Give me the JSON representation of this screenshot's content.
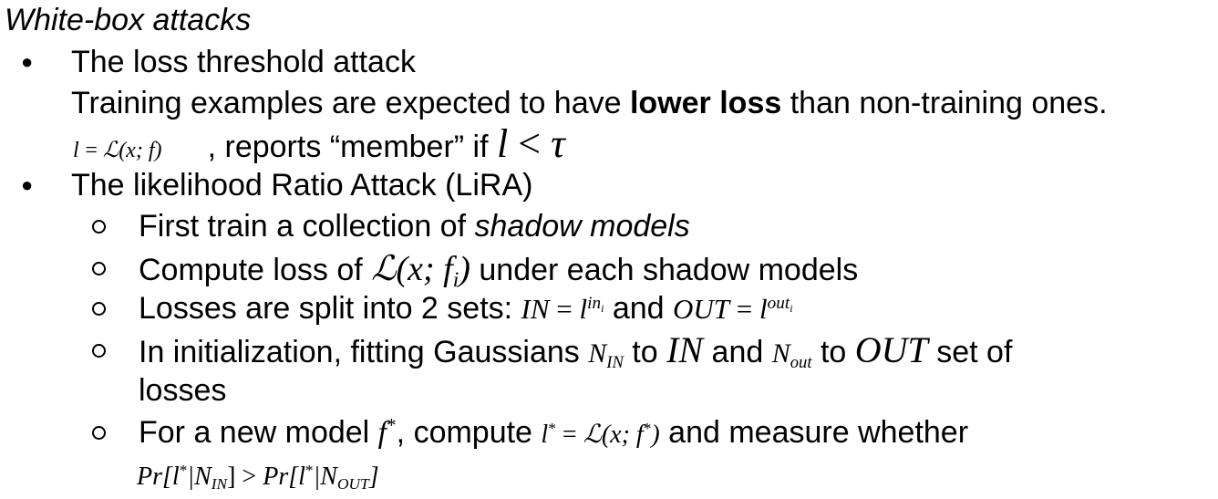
{
  "heading": "White-box attacks",
  "item1": {
    "title": "The loss threshold attack",
    "desc_pre": "Training examples are expected to have ",
    "desc_bold": "lower loss",
    "desc_post": " than non-training ones.",
    "formula_l": "l",
    "formula_eq": "= ",
    "formula_L": "ℒ",
    "formula_args": "(x; f)",
    "report_text": ", reports “member” if",
    "cond_l": "l",
    "cond_lt": " < ",
    "cond_tau": "τ"
  },
  "item2": {
    "title": "The likelihood Ratio Attack (LiRA)",
    "sub1_pre": "First train a collection of ",
    "sub1_em": "shadow models",
    "sub2_pre": "Compute loss of ",
    "sub2_L": "ℒ",
    "sub2_args": "(x; f",
    "sub2_sub": "i",
    "sub2_close": ")",
    "sub2_post": " under each shadow models",
    "sub3_pre": "Losses are split into 2 sets: ",
    "sub3_in": "IN",
    "sub3_eq1": " = ",
    "sub3_l1": "l",
    "sub3_sup1": "in",
    "sub3_supsub1": "i",
    "sub3_and": " and ",
    "sub3_out": "OUT",
    "sub3_eq2": " = ",
    "sub3_l2": "l",
    "sub3_sup2": "out",
    "sub3_supsub2": "i",
    "sub4_pre": "In initialization, fitting Gaussians ",
    "sub4_N1": "N",
    "sub4_N1sub": "IN",
    "sub4_to1": " to ",
    "sub4_IN": "IN",
    "sub4_and": " and ",
    "sub4_N2": "N",
    "sub4_N2sub": "out",
    "sub4_to2": " to ",
    "sub4_OUT": "OUT",
    "sub4_post": " set of",
    "sub4_cont": "losses",
    "sub5_pre": "For a new model ",
    "sub5_f": "f",
    "sub5_star": "*",
    "sub5_mid": ", compute ",
    "sub5_l": "l",
    "sub5_lstar": "*",
    "sub5_eq": " = ",
    "sub5_L": "ℒ",
    "sub5_args": "(x; f",
    "sub5_args_star": "*",
    "sub5_close": ")",
    "sub5_post": " and measure whether",
    "sub5_pr1": "Pr",
    "sub5_br1": "[l",
    "sub5_br1_star": "*",
    "sub5_bar1": "|N",
    "sub5_sub1": "IN",
    "sub5_gt": "] > ",
    "sub5_pr2": "Pr",
    "sub5_br2": "[l",
    "sub5_br2_star": "*",
    "sub5_bar2": "|N",
    "sub5_sub2": "OUT",
    "sub5_end": "]"
  }
}
